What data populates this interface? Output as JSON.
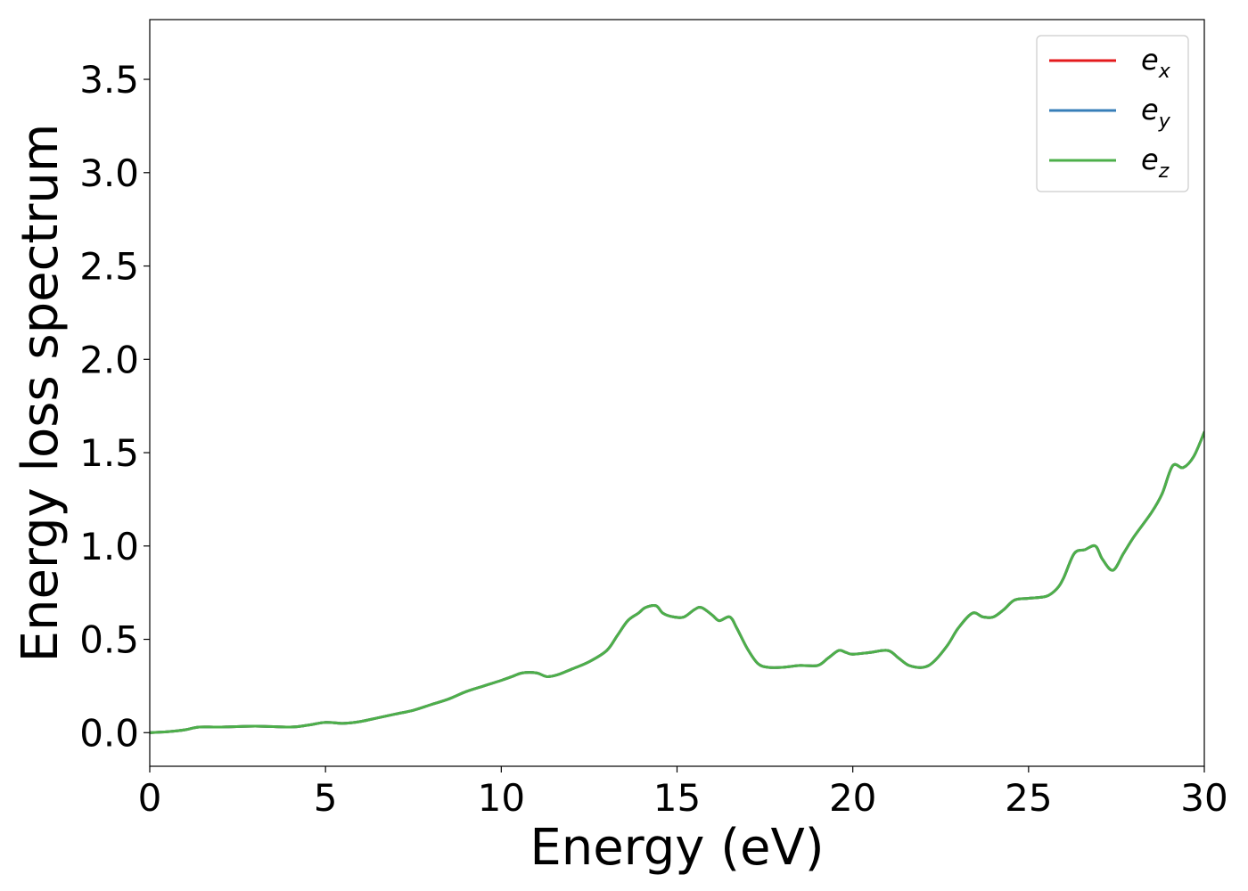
{
  "chart_data": {
    "type": "line",
    "xlabel": "Energy (eV)",
    "ylabel": "Energy loss spectrum",
    "xlim": [
      0,
      30
    ],
    "ylim": [
      -0.18,
      3.82
    ],
    "xticks": [
      0,
      5,
      10,
      15,
      20,
      25,
      30
    ],
    "yticks": [
      0.0,
      0.5,
      1.0,
      1.5,
      2.0,
      2.5,
      3.0,
      3.5
    ],
    "x_tick_labels": [
      "0",
      "5",
      "10",
      "15",
      "20",
      "25",
      "30"
    ],
    "y_tick_labels": [
      "0.0",
      "0.5",
      "1.0",
      "1.5",
      "2.0",
      "2.5",
      "3.0",
      "3.5"
    ],
    "grid": false,
    "legend_position": "top-right",
    "x": [
      0,
      0.5,
      1.0,
      1.4,
      2.0,
      3.0,
      4.0,
      4.5,
      5.0,
      5.5,
      6.0,
      6.5,
      7.0,
      7.5,
      8.0,
      8.5,
      9.0,
      9.5,
      10.0,
      10.3,
      10.6,
      11.0,
      11.3,
      11.6,
      12.0,
      12.5,
      13.0,
      13.3,
      13.6,
      13.9,
      14.1,
      14.4,
      14.6,
      14.9,
      15.2,
      15.5,
      15.7,
      16.0,
      16.2,
      16.5,
      16.7,
      17.0,
      17.3,
      17.6,
      18.0,
      18.5,
      19.0,
      19.3,
      19.6,
      19.8,
      20.0,
      20.5,
      21.0,
      21.3,
      21.6,
      22.0,
      22.3,
      22.7,
      23.0,
      23.4,
      23.7,
      24.0,
      24.3,
      24.6,
      25.0,
      25.5,
      25.8,
      26.0,
      26.3,
      26.6,
      26.9,
      27.1,
      27.4,
      27.7,
      28.0,
      28.5,
      28.8,
      29.1,
      29.4,
      29.7,
      30.0
    ],
    "series": [
      {
        "name": "e_x",
        "color": "#e41a1c",
        "values": [
          0.0,
          0.005,
          0.015,
          0.03,
          0.03,
          0.035,
          0.03,
          0.04,
          0.055,
          0.05,
          0.06,
          0.08,
          0.1,
          0.12,
          0.15,
          0.18,
          0.22,
          0.25,
          0.28,
          0.3,
          0.32,
          0.32,
          0.3,
          0.31,
          0.34,
          0.38,
          0.44,
          0.52,
          0.6,
          0.64,
          0.67,
          0.68,
          0.64,
          0.62,
          0.62,
          0.66,
          0.67,
          0.63,
          0.6,
          0.62,
          0.56,
          0.45,
          0.37,
          0.35,
          0.35,
          0.36,
          0.36,
          0.4,
          0.44,
          0.43,
          0.42,
          0.43,
          0.44,
          0.4,
          0.36,
          0.35,
          0.38,
          0.47,
          0.56,
          0.64,
          0.62,
          0.62,
          0.66,
          0.71,
          0.72,
          0.73,
          0.77,
          0.83,
          0.96,
          0.98,
          1.0,
          0.93,
          0.87,
          0.96,
          1.05,
          1.18,
          1.28,
          1.43,
          1.42,
          1.48,
          1.61
        ]
      },
      {
        "name": "e_y",
        "color": "#377eb8",
        "values": [
          0.0,
          0.005,
          0.015,
          0.03,
          0.03,
          0.035,
          0.03,
          0.04,
          0.055,
          0.05,
          0.06,
          0.08,
          0.1,
          0.12,
          0.15,
          0.18,
          0.22,
          0.25,
          0.28,
          0.3,
          0.32,
          0.32,
          0.3,
          0.31,
          0.34,
          0.38,
          0.44,
          0.52,
          0.6,
          0.64,
          0.67,
          0.68,
          0.64,
          0.62,
          0.62,
          0.66,
          0.67,
          0.63,
          0.6,
          0.62,
          0.56,
          0.45,
          0.37,
          0.35,
          0.35,
          0.36,
          0.36,
          0.4,
          0.44,
          0.43,
          0.42,
          0.43,
          0.44,
          0.4,
          0.36,
          0.35,
          0.38,
          0.47,
          0.56,
          0.64,
          0.62,
          0.62,
          0.66,
          0.71,
          0.72,
          0.73,
          0.77,
          0.83,
          0.96,
          0.98,
          1.0,
          0.93,
          0.87,
          0.96,
          1.05,
          1.18,
          1.28,
          1.43,
          1.42,
          1.48,
          1.61
        ]
      },
      {
        "name": "e_z",
        "color": "#4daf4a",
        "values": [
          0.0,
          0.005,
          0.015,
          0.03,
          0.03,
          0.035,
          0.03,
          0.04,
          0.055,
          0.05,
          0.06,
          0.08,
          0.1,
          0.12,
          0.15,
          0.18,
          0.22,
          0.25,
          0.28,
          0.3,
          0.32,
          0.32,
          0.3,
          0.31,
          0.34,
          0.38,
          0.44,
          0.52,
          0.6,
          0.64,
          0.67,
          0.68,
          0.64,
          0.62,
          0.62,
          0.66,
          0.67,
          0.63,
          0.6,
          0.62,
          0.56,
          0.45,
          0.37,
          0.35,
          0.35,
          0.36,
          0.36,
          0.4,
          0.44,
          0.43,
          0.42,
          0.43,
          0.44,
          0.4,
          0.36,
          0.35,
          0.38,
          0.47,
          0.56,
          0.64,
          0.62,
          0.62,
          0.66,
          0.71,
          0.72,
          0.73,
          0.77,
          0.83,
          0.96,
          0.98,
          1.0,
          0.93,
          0.87,
          0.96,
          1.05,
          1.18,
          1.28,
          1.43,
          1.42,
          1.48,
          1.61
        ]
      }
    ],
    "legend": [
      {
        "base": "e",
        "sub": "x",
        "color": "#e41a1c"
      },
      {
        "base": "e",
        "sub": "y",
        "color": "#377eb8"
      },
      {
        "base": "e",
        "sub": "z",
        "color": "#4daf4a"
      }
    ]
  }
}
